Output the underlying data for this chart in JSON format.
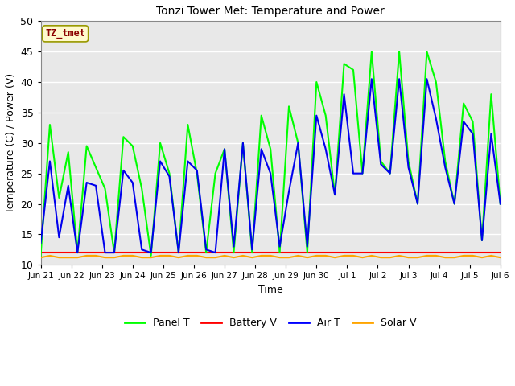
{
  "title": "Tonzi Tower Met: Temperature and Power",
  "xlabel": "Time",
  "ylabel": "Temperature (C) / Power (V)",
  "ylim": [
    10,
    50
  ],
  "yticks": [
    10,
    15,
    20,
    25,
    30,
    35,
    40,
    45,
    50
  ],
  "annotation_text": "TZ_tmet",
  "annotation_color": "#8B0000",
  "annotation_bg": "#FFFACD",
  "annotation_border": "#999900",
  "fig_bg": "#FFFFFF",
  "plot_bg": "#E8E8E8",
  "legend_entries": [
    "Panel T",
    "Battery V",
    "Air T",
    "Solar V"
  ],
  "legend_colors": [
    "#00FF00",
    "#FF0000",
    "#0000FF",
    "#FFA500"
  ],
  "x_tick_labels": [
    "Jun 21",
    "Jun 22",
    "Jun 23",
    "Jun 24",
    "Jun 25",
    "Jun 26",
    "Jun 27",
    "Jun 28",
    "Jun 29",
    "Jun 30",
    "Jul 1",
    "Jul 2",
    "Jul 3",
    "Jul 4",
    "Jul 5",
    "Jul 6"
  ],
  "panel_t": [
    11.5,
    33,
    21,
    28.5,
    12,
    29.5,
    26,
    22.5,
    12,
    31,
    29.5,
    22.5,
    11.5,
    30,
    25,
    12,
    33,
    25,
    12,
    25,
    29,
    12,
    30,
    12,
    34.5,
    29,
    12,
    36,
    30,
    12,
    40,
    34.5,
    21.5,
    43,
    42,
    25,
    45,
    27,
    25,
    45,
    27,
    20,
    45,
    40,
    27,
    20,
    36.5,
    33.5,
    14,
    38,
    20
  ],
  "air_t": [
    13.5,
    27,
    14.5,
    23,
    12,
    23.5,
    23,
    12,
    12,
    25.5,
    23.5,
    12.5,
    12,
    27,
    24.5,
    12,
    27,
    25.5,
    12.5,
    12,
    29,
    13,
    30,
    12.5,
    29,
    25,
    13,
    22,
    30,
    13,
    34.5,
    29,
    21.5,
    38,
    25,
    25,
    40.5,
    26.5,
    25,
    40.5,
    26,
    20,
    40.5,
    34,
    26,
    20,
    33.5,
    31.5,
    14,
    31.5,
    20
  ],
  "battery_v": [
    12,
    12,
    12,
    12,
    12,
    12,
    12,
    12,
    12,
    12,
    12,
    12,
    12,
    12,
    12,
    12,
    12,
    12,
    12,
    12,
    12,
    12,
    12,
    12,
    12,
    12,
    12,
    12,
    12,
    12,
    12,
    12,
    12,
    12,
    12,
    12,
    12,
    12,
    12,
    12,
    12,
    12,
    12,
    12,
    12,
    12,
    12,
    12,
    12,
    12,
    12
  ],
  "solar_v": [
    11.2,
    11.5,
    11.2,
    11.2,
    11.2,
    11.5,
    11.5,
    11.2,
    11.2,
    11.5,
    11.5,
    11.2,
    11.2,
    11.5,
    11.5,
    11.2,
    11.5,
    11.5,
    11.2,
    11.2,
    11.5,
    11.2,
    11.5,
    11.2,
    11.5,
    11.5,
    11.2,
    11.2,
    11.5,
    11.2,
    11.5,
    11.5,
    11.2,
    11.5,
    11.5,
    11.2,
    11.5,
    11.2,
    11.2,
    11.5,
    11.2,
    11.2,
    11.5,
    11.5,
    11.2,
    11.2,
    11.5,
    11.5,
    11.2,
    11.5,
    11.2
  ]
}
